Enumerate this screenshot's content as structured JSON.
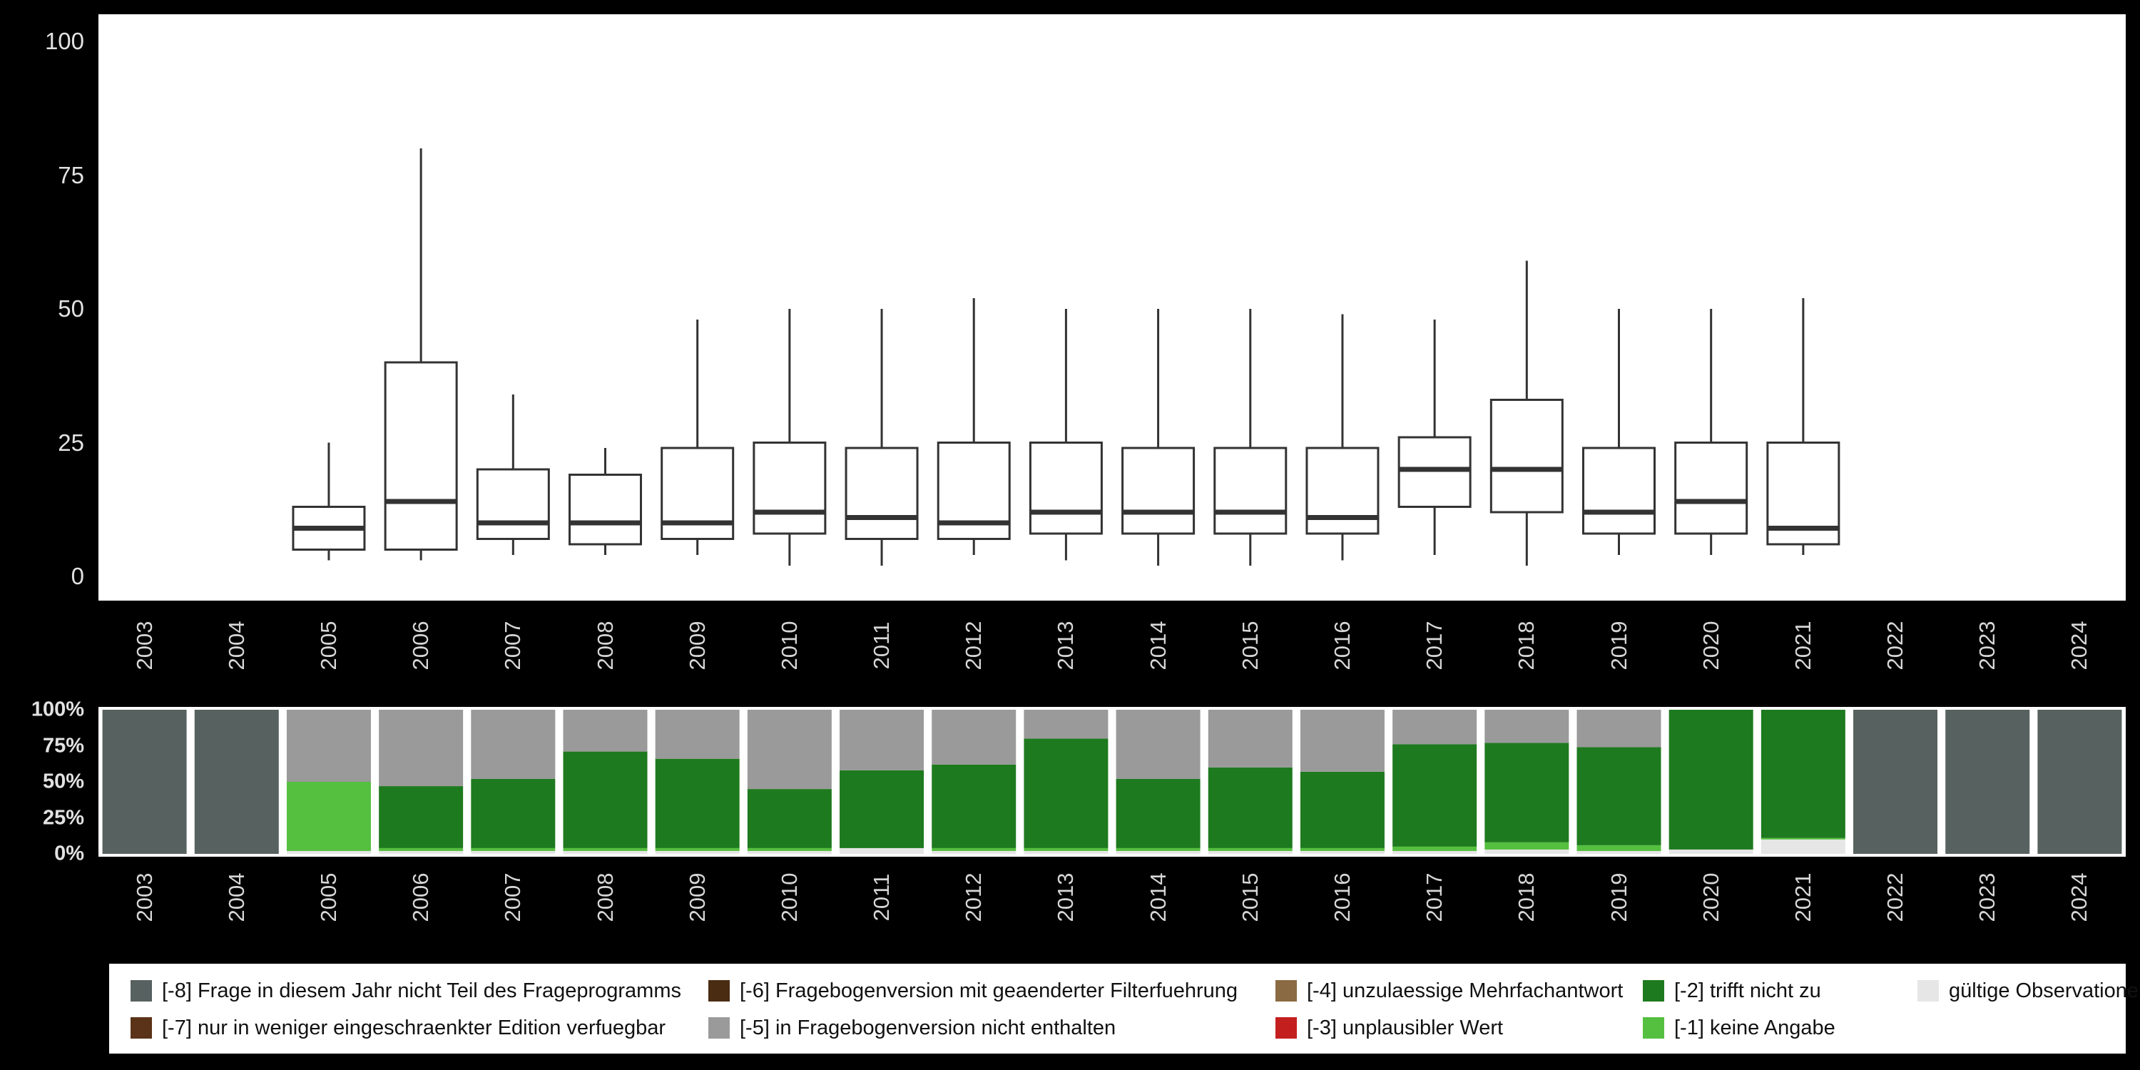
{
  "figure": {
    "background": "#000000",
    "panel_background": "#ffffff",
    "axis_text_color": "#d6d6d6",
    "box_stroke_color": "#333333"
  },
  "chart_data": [
    {
      "type": "boxplot",
      "categories": [
        "2003",
        "2004",
        "2005",
        "2006",
        "2007",
        "2008",
        "2009",
        "2010",
        "2011",
        "2012",
        "2013",
        "2014",
        "2015",
        "2016",
        "2017",
        "2018",
        "2019",
        "2020",
        "2021",
        "2022",
        "2023",
        "2024"
      ],
      "ylim": [
        0,
        100
      ],
      "yticks": [
        "0",
        "25",
        "50",
        "75",
        "100"
      ],
      "grid": false,
      "series": [
        {
          "year": "2005",
          "low": 3,
          "q1": 5,
          "median": 9,
          "q3": 13,
          "high": 25
        },
        {
          "year": "2006",
          "low": 3,
          "q1": 5,
          "median": 14,
          "q3": 40,
          "high": 80
        },
        {
          "year": "2007",
          "low": 4,
          "q1": 7,
          "median": 10,
          "q3": 20,
          "high": 34
        },
        {
          "year": "2008",
          "low": 4,
          "q1": 6,
          "median": 10,
          "q3": 19,
          "high": 24
        },
        {
          "year": "2009",
          "low": 4,
          "q1": 7,
          "median": 10,
          "q3": 24,
          "high": 48
        },
        {
          "year": "2010",
          "low": 2,
          "q1": 8,
          "median": 12,
          "q3": 25,
          "high": 50
        },
        {
          "year": "2011",
          "low": 2,
          "q1": 7,
          "median": 11,
          "q3": 24,
          "high": 50
        },
        {
          "year": "2012",
          "low": 4,
          "q1": 7,
          "median": 10,
          "q3": 25,
          "high": 52
        },
        {
          "year": "2013",
          "low": 3,
          "q1": 8,
          "median": 12,
          "q3": 25,
          "high": 50
        },
        {
          "year": "2014",
          "low": 2,
          "q1": 8,
          "median": 12,
          "q3": 24,
          "high": 50
        },
        {
          "year": "2015",
          "low": 2,
          "q1": 8,
          "median": 12,
          "q3": 24,
          "high": 50
        },
        {
          "year": "2016",
          "low": 3,
          "q1": 8,
          "median": 11,
          "q3": 24,
          "high": 49
        },
        {
          "year": "2017",
          "low": 4,
          "q1": 13,
          "median": 20,
          "q3": 26,
          "high": 48
        },
        {
          "year": "2018",
          "low": 2,
          "q1": 12,
          "median": 20,
          "q3": 33,
          "high": 59
        },
        {
          "year": "2019",
          "low": 4,
          "q1": 8,
          "median": 12,
          "q3": 24,
          "high": 50
        },
        {
          "year": "2020",
          "low": 4,
          "q1": 8,
          "median": 14,
          "q3": 25,
          "high": 50
        },
        {
          "year": "2021",
          "low": 4,
          "q1": 6,
          "median": 9,
          "q3": 25,
          "high": 52
        }
      ]
    },
    {
      "type": "bar",
      "stacked": true,
      "ylim": [
        0,
        100
      ],
      "yticks": [
        "0%",
        "25%",
        "50%",
        "75%",
        "100%"
      ],
      "categories": [
        "2003",
        "2004",
        "2005",
        "2006",
        "2007",
        "2008",
        "2009",
        "2010",
        "2011",
        "2012",
        "2013",
        "2014",
        "2015",
        "2016",
        "2017",
        "2018",
        "2019",
        "2020",
        "2021",
        "2022",
        "2023",
        "2024"
      ],
      "series": [
        {
          "name": "gültige Observationen",
          "color": "#e6e6e6",
          "values": [
            0,
            0,
            2,
            2,
            2,
            2,
            2,
            2,
            4,
            2,
            2,
            2,
            2,
            2,
            2,
            3,
            2,
            3,
            10,
            0,
            0,
            0
          ]
        },
        {
          "name": "[-1] keine Angabe",
          "color": "#55bf3f",
          "values": [
            0,
            0,
            48,
            2,
            2,
            2,
            2,
            2,
            0,
            2,
            2,
            2,
            2,
            2,
            3,
            5,
            4,
            0,
            1,
            0,
            0,
            0
          ]
        },
        {
          "name": "[-2] trifft nicht zu",
          "color": "#1e7a1e",
          "values": [
            0,
            0,
            0,
            43,
            48,
            67,
            62,
            41,
            54,
            58,
            76,
            48,
            56,
            53,
            71,
            69,
            68,
            97,
            89,
            0,
            0,
            0
          ]
        },
        {
          "name": "[-5] in Fragebogenversion nicht enthalten",
          "color": "#9a9a9a",
          "values": [
            0,
            0,
            50,
            53,
            48,
            29,
            34,
            55,
            42,
            38,
            20,
            48,
            40,
            43,
            24,
            23,
            26,
            0,
            0,
            0,
            0,
            0
          ]
        },
        {
          "name": "[-8] Frage in diesem Jahr nicht Teil des Frageprogramms",
          "color": "#576160",
          "values": [
            100,
            100,
            0,
            0,
            0,
            0,
            0,
            0,
            0,
            0,
            0,
            0,
            0,
            0,
            0,
            0,
            0,
            0,
            0,
            100,
            100,
            100
          ]
        }
      ]
    }
  ],
  "legend": {
    "items": [
      {
        "label": "[-8] Frage in diesem Jahr nicht Teil des Frageprogramms",
        "color": "#576160",
        "row": 0,
        "col": 0
      },
      {
        "label": "[-7] nur in weniger eingeschraenkter Edition verfuegbar",
        "color": "#5b3318",
        "row": 1,
        "col": 0
      },
      {
        "label": "[-6] Fragebogenversion mit geaenderter Filterfuehrung",
        "color": "#4a2c13",
        "row": 0,
        "col": 1
      },
      {
        "label": "[-5] in Fragebogenversion nicht enthalten",
        "color": "#9a9a9a",
        "row": 1,
        "col": 1
      },
      {
        "label": "[-4] unzulaessige Mehrfachantwort",
        "color": "#8a6a43",
        "row": 0,
        "col": 2
      },
      {
        "label": "[-3] unplausibler Wert",
        "color": "#c41f1f",
        "row": 1,
        "col": 2
      },
      {
        "label": "[-2] trifft nicht zu",
        "color": "#1e7a1e",
        "row": 0,
        "col": 3
      },
      {
        "label": "[-1] keine Angabe",
        "color": "#55bf3f",
        "row": 1,
        "col": 3
      },
      {
        "label": "gültige Observationen",
        "color": "#e6e6e6",
        "row": 0,
        "col": 4
      }
    ]
  }
}
